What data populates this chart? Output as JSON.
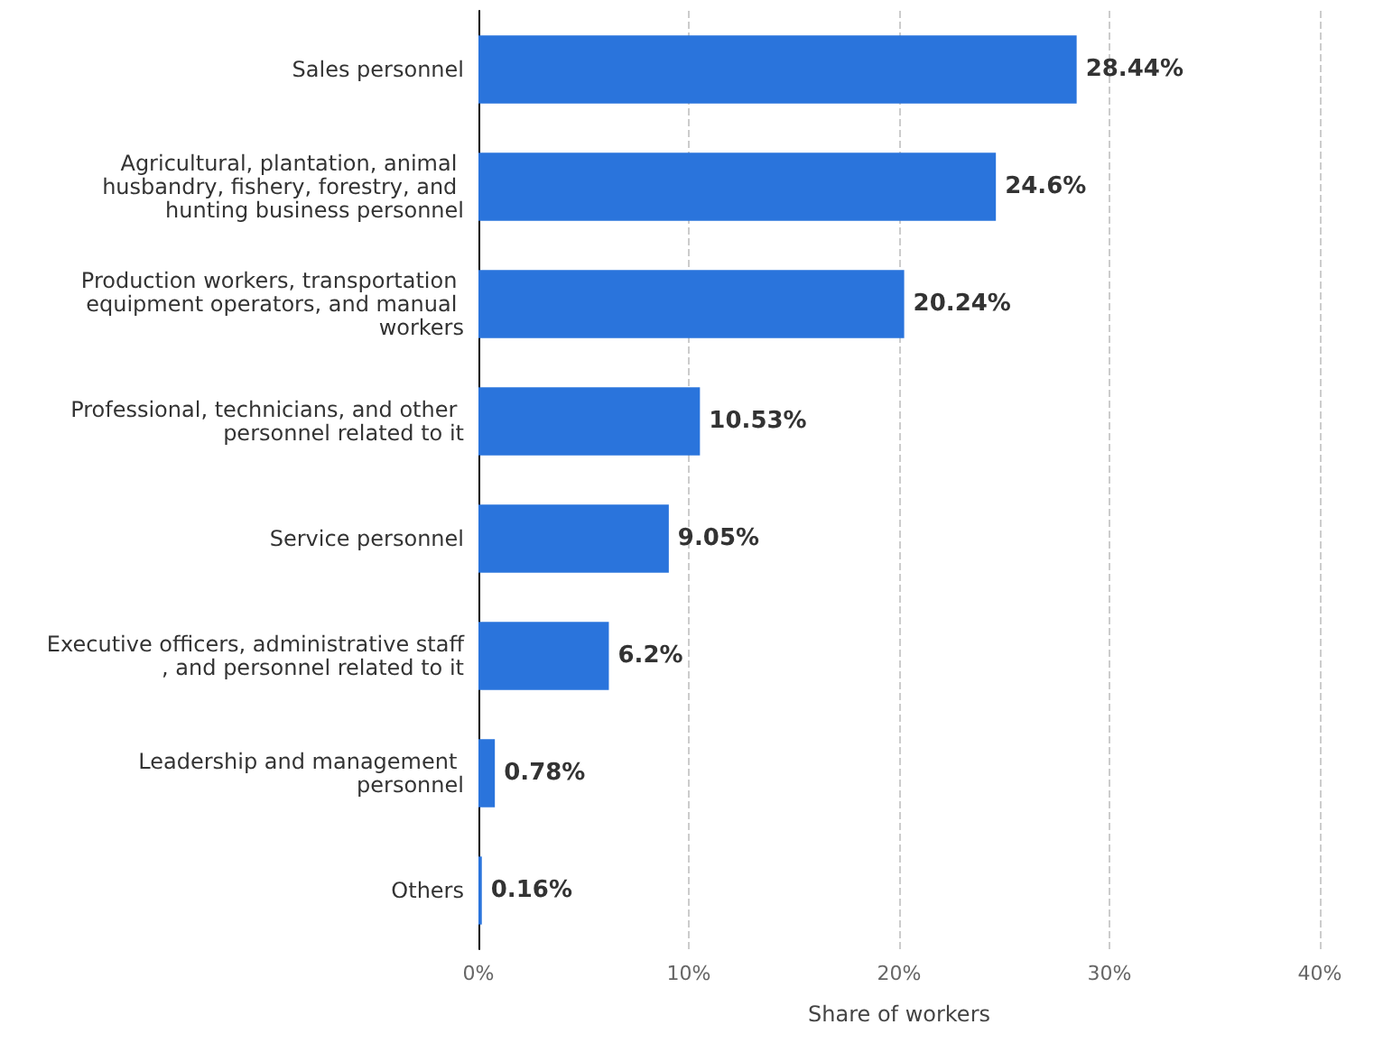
{
  "chart_data": {
    "type": "bar",
    "orientation": "horizontal",
    "xlabel": "Share of workers",
    "categories": [
      "Sales personnel",
      "Agricultural, plantation, animal husbandry, fishery, forestry, and hunting business personnel",
      "Production workers, transportation equipment operators, and manual workers",
      "Professional, technicians, and other personnel related to it",
      "Service personnel",
      "Executive officers, administrative staff, and personnel related to it",
      "Leadership and management personnel",
      "Others"
    ],
    "values": [
      28.44,
      24.6,
      20.24,
      10.53,
      9.05,
      6.2,
      0.78,
      0.16
    ],
    "value_labels": [
      "28.44%",
      "24.6%",
      "20.24%",
      "10.53%",
      "9.05%",
      "6.2%",
      "0.78%",
      "0.16%"
    ],
    "color": "#2a74dc",
    "xlim": [
      0,
      40
    ],
    "xticks": [
      {
        "value": 0,
        "label": "0%"
      },
      {
        "value": 10,
        "label": "10%"
      },
      {
        "value": 20,
        "label": "20%"
      },
      {
        "value": 30,
        "label": "30%"
      },
      {
        "value": 40,
        "label": "40%"
      }
    ],
    "grid": "x"
  }
}
